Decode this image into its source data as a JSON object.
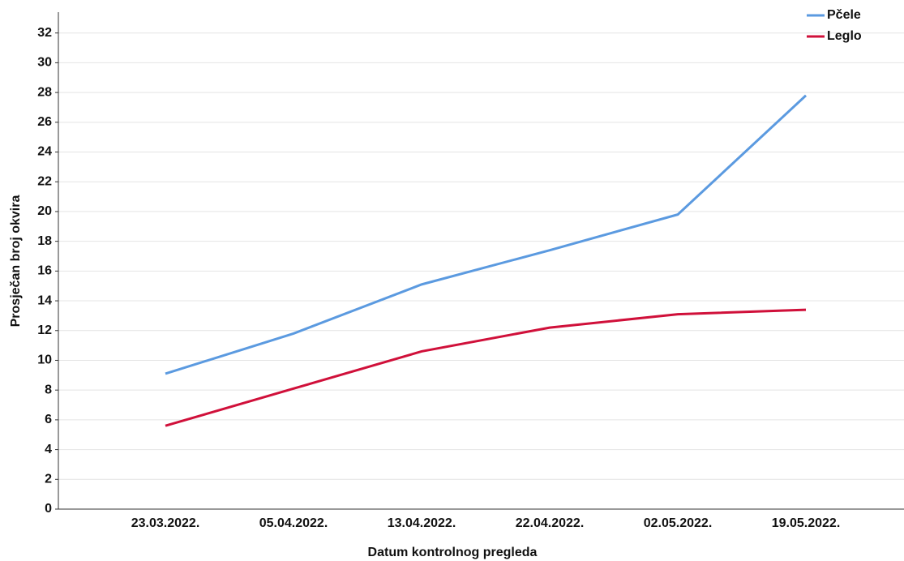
{
  "chart_data": {
    "type": "line",
    "x_label": "Datum kontrolnog pregleda",
    "y_label": "Prosječan broj okvira",
    "categories": [
      "23.03.2022.",
      "05.04.2022.",
      "13.04.2022.",
      "22.04.2022.",
      "02.05.2022.",
      "19.05.2022."
    ],
    "series": [
      {
        "name": "Pčele",
        "color": "#5b9ae0",
        "values": [
          9.1,
          11.8,
          15.1,
          17.4,
          19.8,
          27.8
        ]
      },
      {
        "name": "Leglo",
        "color": "#d0103a",
        "values": [
          5.6,
          8.1,
          10.6,
          12.2,
          13.1,
          13.4
        ]
      }
    ],
    "ylim": [
      0,
      33.4
    ],
    "yticks": [
      0,
      2,
      4,
      6,
      8,
      10,
      12,
      14,
      16,
      18,
      20,
      22,
      24,
      26,
      28,
      30,
      32
    ],
    "grid": true,
    "legend": "top-right"
  }
}
